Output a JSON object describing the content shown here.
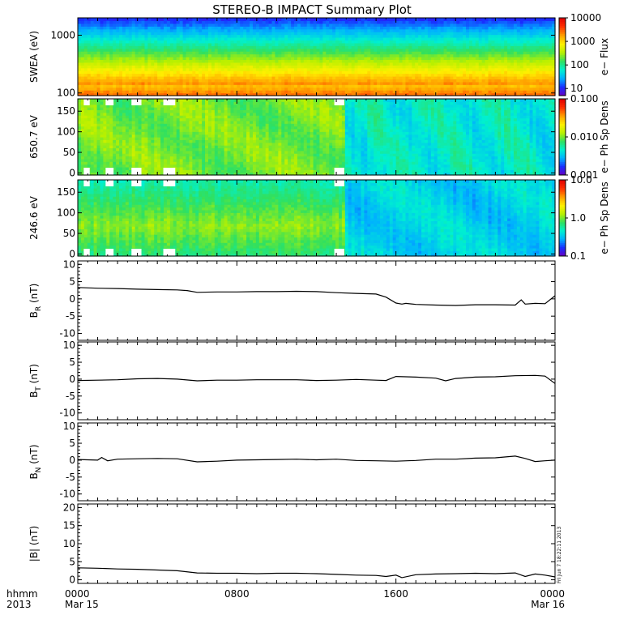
{
  "title": "STEREO-B IMPACT Summary Plot",
  "x_axis": {
    "corner_label_1": "hhmm",
    "corner_label_2": "2013",
    "ticks": [
      {
        "hours": 0,
        "l1": "0000",
        "l2": "Mar 15"
      },
      {
        "hours": 8,
        "l1": "0800",
        "l2": ""
      },
      {
        "hours": 16,
        "l1": "1600",
        "l2": ""
      },
      {
        "hours": 24,
        "l1": "0000",
        "l2": "Mar 16"
      }
    ]
  },
  "timestamp": "Fri Jun 7 18:22:11 2013",
  "colors": {
    "spectrogram": [
      "#6a00c0",
      "#1a2cff",
      "#00b0ff",
      "#00f0d0",
      "#30e060",
      "#b8f000",
      "#fff000",
      "#ffa000",
      "#ff3000",
      "#e00000"
    ],
    "missing": "#ffffff",
    "line": "#000000"
  },
  "chart_data": [
    {
      "type": "heatmap",
      "ylabel": "SWEA (eV)",
      "yscale": "log",
      "ylim": [
        90,
        2000
      ],
      "yticks": [
        {
          "v": 100,
          "t": "100"
        },
        {
          "v": 1000,
          "t": "1000"
        }
      ],
      "colorbar": {
        "label": "e− Flux",
        "scale": "log",
        "range": [
          5,
          10000
        ],
        "ticks": [
          {
            "v": 10,
            "t": "10"
          },
          {
            "v": 100,
            "t": "100"
          },
          {
            "v": 1000,
            "t": "1000"
          },
          {
            "v": 10000,
            "t": "10000"
          }
        ]
      }
    },
    {
      "type": "heatmap",
      "ylabel": "650.7 eV",
      "ylim": [
        -5,
        180
      ],
      "yticks": [
        {
          "v": 0,
          "t": "0"
        },
        {
          "v": 50,
          "t": "50"
        },
        {
          "v": 100,
          "t": "100"
        },
        {
          "v": 150,
          "t": "150"
        }
      ],
      "colorbar": {
        "label": "e− Ph Sp Dens",
        "scale": "log",
        "range": [
          0.001,
          0.1
        ],
        "ticks": [
          {
            "v": 0.001,
            "t": "0.001"
          },
          {
            "v": 0.01,
            "t": "0.010"
          },
          {
            "v": 0.1,
            "t": "0.100"
          }
        ]
      }
    },
    {
      "type": "heatmap",
      "ylabel": "246.6 eV",
      "ylim": [
        -5,
        180
      ],
      "yticks": [
        {
          "v": 0,
          "t": "0"
        },
        {
          "v": 50,
          "t": "50"
        },
        {
          "v": 100,
          "t": "100"
        },
        {
          "v": 150,
          "t": "150"
        }
      ],
      "colorbar": {
        "label": "e− Ph Sp Dens",
        "scale": "log",
        "range": [
          0.1,
          10
        ],
        "ticks": [
          {
            "v": 0.1,
            "t": "0.1"
          },
          {
            "v": 1,
            "t": "1.0"
          },
          {
            "v": 10,
            "t": "10.0"
          }
        ]
      }
    },
    {
      "type": "line",
      "ylabel": "B",
      "ylabel_sub": "R",
      "ylabel_unit": "(nT)",
      "ylim": [
        -12,
        11
      ],
      "yticks": [
        -10,
        -5,
        0,
        5,
        10
      ],
      "x": [
        0,
        1,
        2,
        3,
        4,
        5,
        5.5,
        6,
        7,
        8,
        9,
        10,
        11,
        12,
        13,
        14,
        14.5,
        15,
        15.5,
        16,
        16.3,
        16.5,
        17,
        18,
        19,
        20,
        21,
        22,
        22.3,
        22.5,
        23,
        23.5,
        24
      ],
      "y": [
        3.3,
        3.1,
        3.0,
        2.8,
        2.7,
        2.6,
        2.4,
        1.9,
        2.0,
        2.0,
        2.1,
        2.1,
        2.2,
        2.1,
        1.8,
        1.6,
        1.5,
        1.4,
        0.5,
        -1.2,
        -1.5,
        -1.3,
        -1.6,
        -1.8,
        -1.9,
        -1.7,
        -1.7,
        -1.8,
        -0.3,
        -1.5,
        -1.3,
        -1.4,
        0.9
      ]
    },
    {
      "type": "line",
      "ylabel": "B",
      "ylabel_sub": "T",
      "ylabel_unit": "(nT)",
      "ylim": [
        -12,
        11
      ],
      "yticks": [
        -10,
        -5,
        0,
        5,
        10
      ],
      "x": [
        0,
        1,
        2,
        3,
        4,
        5,
        6,
        7,
        8,
        9,
        10,
        11,
        12,
        13,
        14,
        15,
        15.5,
        16,
        17,
        18,
        18.5,
        19,
        20,
        21,
        22,
        23,
        23.5,
        24
      ],
      "y": [
        -0.4,
        -0.3,
        -0.2,
        0.1,
        0.2,
        0.0,
        -0.5,
        -0.3,
        -0.3,
        -0.2,
        -0.2,
        -0.2,
        -0.4,
        -0.3,
        -0.1,
        -0.3,
        -0.4,
        0.8,
        0.6,
        0.3,
        -0.5,
        0.2,
        0.6,
        0.7,
        1.0,
        1.1,
        0.9,
        -1.3
      ]
    },
    {
      "type": "line",
      "ylabel": "B",
      "ylabel_sub": "N",
      "ylabel_unit": "(nT)",
      "ylim": [
        -12,
        11
      ],
      "yticks": [
        -10,
        -5,
        0,
        5,
        10
      ],
      "x": [
        0,
        1,
        1.2,
        1.5,
        2,
        3,
        4,
        5,
        6,
        7,
        8,
        9,
        10,
        11,
        12,
        13,
        14,
        15,
        16,
        17,
        18,
        19,
        20,
        21,
        22,
        22.5,
        23,
        23.5,
        24
      ],
      "y": [
        0.2,
        0.0,
        0.8,
        -0.2,
        0.3,
        0.4,
        0.5,
        0.4,
        -0.5,
        -0.3,
        0.0,
        0.1,
        0.2,
        0.3,
        0.1,
        0.3,
        -0.1,
        -0.2,
        -0.3,
        -0.1,
        0.3,
        0.3,
        0.6,
        0.7,
        1.2,
        0.5,
        -0.4,
        -0.2,
        0.0
      ]
    },
    {
      "type": "line",
      "ylabel": "|B| (nT)",
      "ylim": [
        -1,
        21
      ],
      "yticks": [
        0,
        5,
        10,
        15,
        20
      ],
      "x": [
        0,
        1,
        2,
        3,
        4,
        5,
        6,
        7,
        8,
        9,
        10,
        11,
        12,
        13,
        14,
        15,
        15.5,
        16,
        16.3,
        17,
        18,
        19,
        20,
        21,
        22,
        22.5,
        23,
        23.5,
        24
      ],
      "y": [
        3.3,
        3.2,
        3.0,
        2.9,
        2.7,
        2.5,
        1.9,
        1.8,
        1.8,
        1.7,
        1.8,
        1.8,
        1.7,
        1.5,
        1.3,
        1.2,
        0.9,
        1.3,
        0.6,
        1.4,
        1.6,
        1.7,
        1.8,
        1.7,
        1.9,
        0.9,
        1.6,
        1.3,
        0.8
      ]
    }
  ]
}
